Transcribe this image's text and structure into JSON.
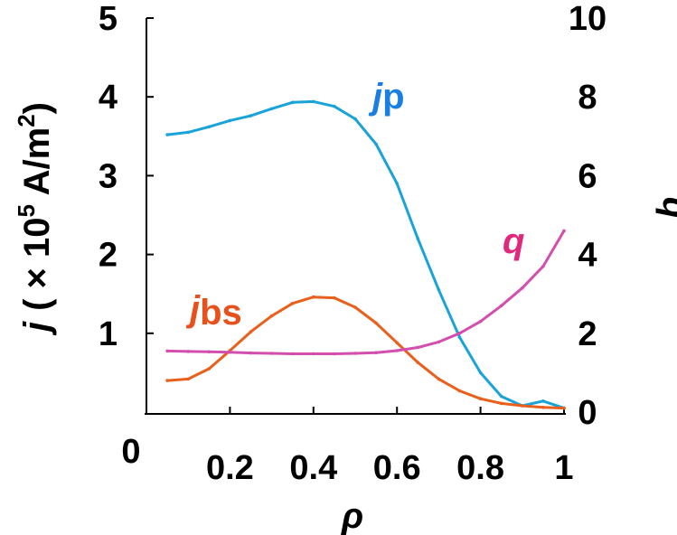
{
  "chart_data": {
    "type": "line",
    "x": [
      0.05,
      0.1,
      0.15,
      0.2,
      0.25,
      0.3,
      0.35,
      0.4,
      0.45,
      0.5,
      0.55,
      0.6,
      0.65,
      0.7,
      0.75,
      0.8,
      0.85,
      0.9,
      0.95,
      1.0
    ],
    "xlabel": "ρ",
    "xlim": [
      0,
      1
    ],
    "x_ticks": [
      "0",
      "0.2",
      "0.4",
      "0.6",
      "0.8",
      "1"
    ],
    "y_left": {
      "label_prefix": "j",
      "label_main": "( × 10",
      "label_exp": "5",
      "label_unit": " A/m",
      "label_unit_exp": "2",
      "label_close": ")",
      "lim": [
        0,
        5
      ],
      "ticks": [
        "1",
        "2",
        "3",
        "4",
        "5"
      ]
    },
    "y_right": {
      "label": "q",
      "lim": [
        0,
        10
      ],
      "ticks": [
        "0",
        "2",
        "4",
        "6",
        "8",
        "10"
      ]
    },
    "series": [
      {
        "name": "j",
        "name_sub": "p",
        "axis": "left",
        "color": "#1aa3d9",
        "values": [
          3.52,
          3.55,
          3.62,
          3.7,
          3.76,
          3.85,
          3.93,
          3.94,
          3.88,
          3.72,
          3.4,
          2.9,
          2.2,
          1.55,
          0.95,
          0.5,
          0.2,
          0.08,
          0.14,
          0.05
        ]
      },
      {
        "name": "j",
        "name_sub": "bs",
        "axis": "left",
        "color": "#e8601c",
        "values": [
          0.4,
          0.42,
          0.55,
          0.78,
          1.02,
          1.22,
          1.38,
          1.46,
          1.45,
          1.33,
          1.13,
          0.88,
          0.63,
          0.42,
          0.27,
          0.17,
          0.11,
          0.08,
          0.06,
          0.05
        ]
      },
      {
        "name": "q",
        "axis": "right",
        "color": "#d24faf",
        "values": [
          1.55,
          1.54,
          1.53,
          1.52,
          1.5,
          1.49,
          1.48,
          1.48,
          1.48,
          1.49,
          1.51,
          1.56,
          1.64,
          1.78,
          2.0,
          2.3,
          2.7,
          3.15,
          3.7,
          4.6
        ]
      }
    ]
  }
}
